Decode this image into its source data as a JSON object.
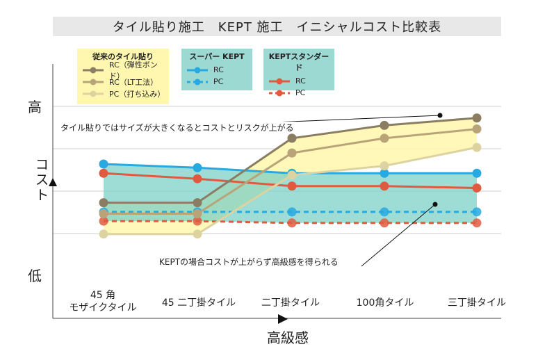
{
  "chart_data": {
    "type": "line",
    "title": "タイル貼り施工　KEPT 施工　イニシャルコスト比較表",
    "xlabel": "高級感",
    "ylabel": "コスト",
    "y_high_label": "高",
    "y_low_label": "低",
    "categories": [
      "45 角\nモザイクタイル",
      "45 二丁掛タイル",
      "二丁掛タイル",
      "100角タイル",
      "三丁掛タイル"
    ],
    "ylim": [
      0,
      10
    ],
    "grid": true,
    "series": [
      {
        "name": "RC（弾性ボンド）",
        "group": "従来のタイル貼り",
        "color": "#8a7d61",
        "dash": false,
        "values": [
          3.9,
          3.9,
          7.4,
          8.1,
          8.5
        ]
      },
      {
        "name": "RC（LT工法）",
        "group": "従来のタイル貼り",
        "color": "#b8a478",
        "dash": false,
        "values": [
          3.3,
          3.3,
          6.6,
          7.4,
          7.9
        ]
      },
      {
        "name": "PC（打ち込み）",
        "group": "従来のタイル貼り",
        "color": "#dcd3a0",
        "dash": false,
        "values": [
          2.2,
          2.2,
          5.4,
          5.9,
          6.9
        ]
      },
      {
        "name": "RC",
        "group": "スーパー KEPT",
        "color": "#27a9e1",
        "dash": false,
        "values": [
          6.0,
          5.8,
          5.5,
          5.5,
          5.5
        ]
      },
      {
        "name": "PC",
        "group": "スーパー KEPT",
        "color": "#27a9e1",
        "dash": true,
        "values": [
          3.4,
          3.4,
          3.4,
          3.4,
          3.4
        ]
      },
      {
        "name": "RC",
        "group": "KEPTスタンダード",
        "color": "#e05a3f",
        "dash": false,
        "values": [
          5.5,
          5.2,
          4.8,
          4.8,
          4.7
        ]
      },
      {
        "name": "PC",
        "group": "KEPTスタンダード",
        "color": "#e05a3f",
        "dash": true,
        "values": [
          2.9,
          2.9,
          2.8,
          2.8,
          2.8
        ]
      }
    ],
    "legend_groups": [
      "従来のタイル貼り",
      "スーパー KEPT",
      "KEPTスタンダード"
    ],
    "annotations": [
      "タイル貼りではサイズが大きくなるとコストとリスクが上がる",
      "KEPTの場合コストが上がらず高級感を得られる"
    ]
  }
}
